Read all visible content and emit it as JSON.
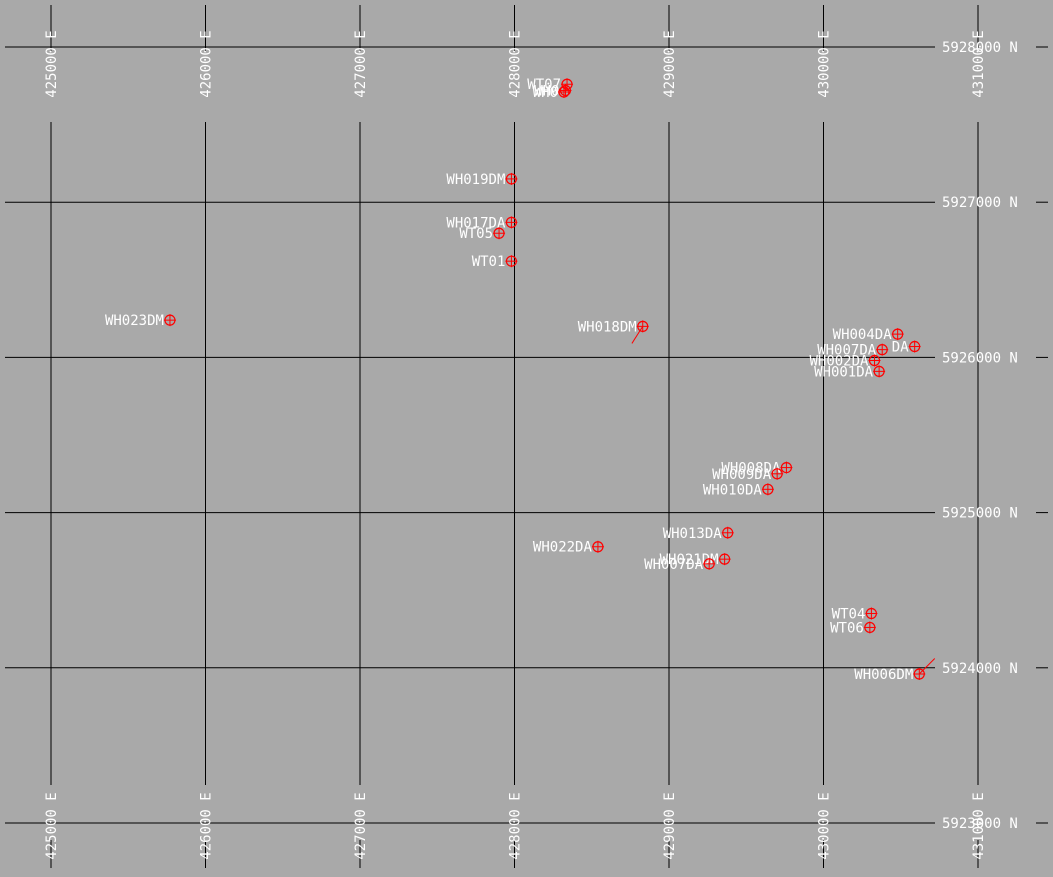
{
  "map": {
    "easting_unit": "E",
    "northing_unit": "N",
    "eastings": [
      425000,
      426000,
      427000,
      428000,
      429000,
      430000,
      431000
    ],
    "northings": [
      5928000,
      5927000,
      5926000,
      5925000,
      5924000,
      5923000
    ],
    "easting_labels": [
      "425000 E",
      "426000 E",
      "427000 E",
      "428000 E",
      "429000 E",
      "430000 E",
      "431000 E"
    ],
    "northing_labels": [
      "5928000 N",
      "5927000 N",
      "5926000 N",
      "5925000 N",
      "5924000 N",
      "5923000 N"
    ],
    "colors": {
      "background": "#a9a9a9",
      "grid": "#000000",
      "label": "#ffffff",
      "marker": "#ff0000",
      "axis_text": "#ffffff"
    }
  },
  "wells": [
    {
      "label": "WT07",
      "e": 428340,
      "n": 5927760
    },
    {
      "label": "WH0",
      "e": 428330,
      "n": 5927720
    },
    {
      "label": "WH0",
      "e": 428320,
      "n": 5927710
    },
    {
      "label": "WH019DM",
      "e": 427980,
      "n": 5927150
    },
    {
      "label": "WH017DA",
      "e": 427980,
      "n": 5926870
    },
    {
      "label": "WT05",
      "e": 427900,
      "n": 5926800
    },
    {
      "label": "WT01",
      "e": 427980,
      "n": 5926620
    },
    {
      "label": "WH023DM",
      "e": 425770,
      "n": 5926240
    },
    {
      "label": "WH018DM",
      "e": 428830,
      "n": 5926200
    },
    {
      "label": "WH004DA",
      "e": 430480,
      "n": 5926150
    },
    {
      "label": "DA",
      "e": 430590,
      "n": 5926070
    },
    {
      "label": "WH007DA",
      "e": 430380,
      "n": 5926050
    },
    {
      "label": "WH002DA",
      "e": 430330,
      "n": 5925980
    },
    {
      "label": "WH001DA",
      "e": 430360,
      "n": 5925910
    },
    {
      "label": "WH008DA",
      "e": 429760,
      "n": 5925290
    },
    {
      "label": "WH009DA",
      "e": 429700,
      "n": 5925250
    },
    {
      "label": "WH010DA",
      "e": 429640,
      "n": 5925150
    },
    {
      "label": "WH013DA",
      "e": 429380,
      "n": 5924870
    },
    {
      "label": "WH022DA",
      "e": 428540,
      "n": 5924780
    },
    {
      "label": "WH021DM",
      "e": 429360,
      "n": 5924700
    },
    {
      "label": "WH007DA",
      "e": 429260,
      "n": 5924670
    },
    {
      "label": "WT04",
      "e": 430310,
      "n": 5924350
    },
    {
      "label": "WT06",
      "e": 430300,
      "n": 5924260
    },
    {
      "label": "WH006DM",
      "e": 430620,
      "n": 5923960
    }
  ]
}
